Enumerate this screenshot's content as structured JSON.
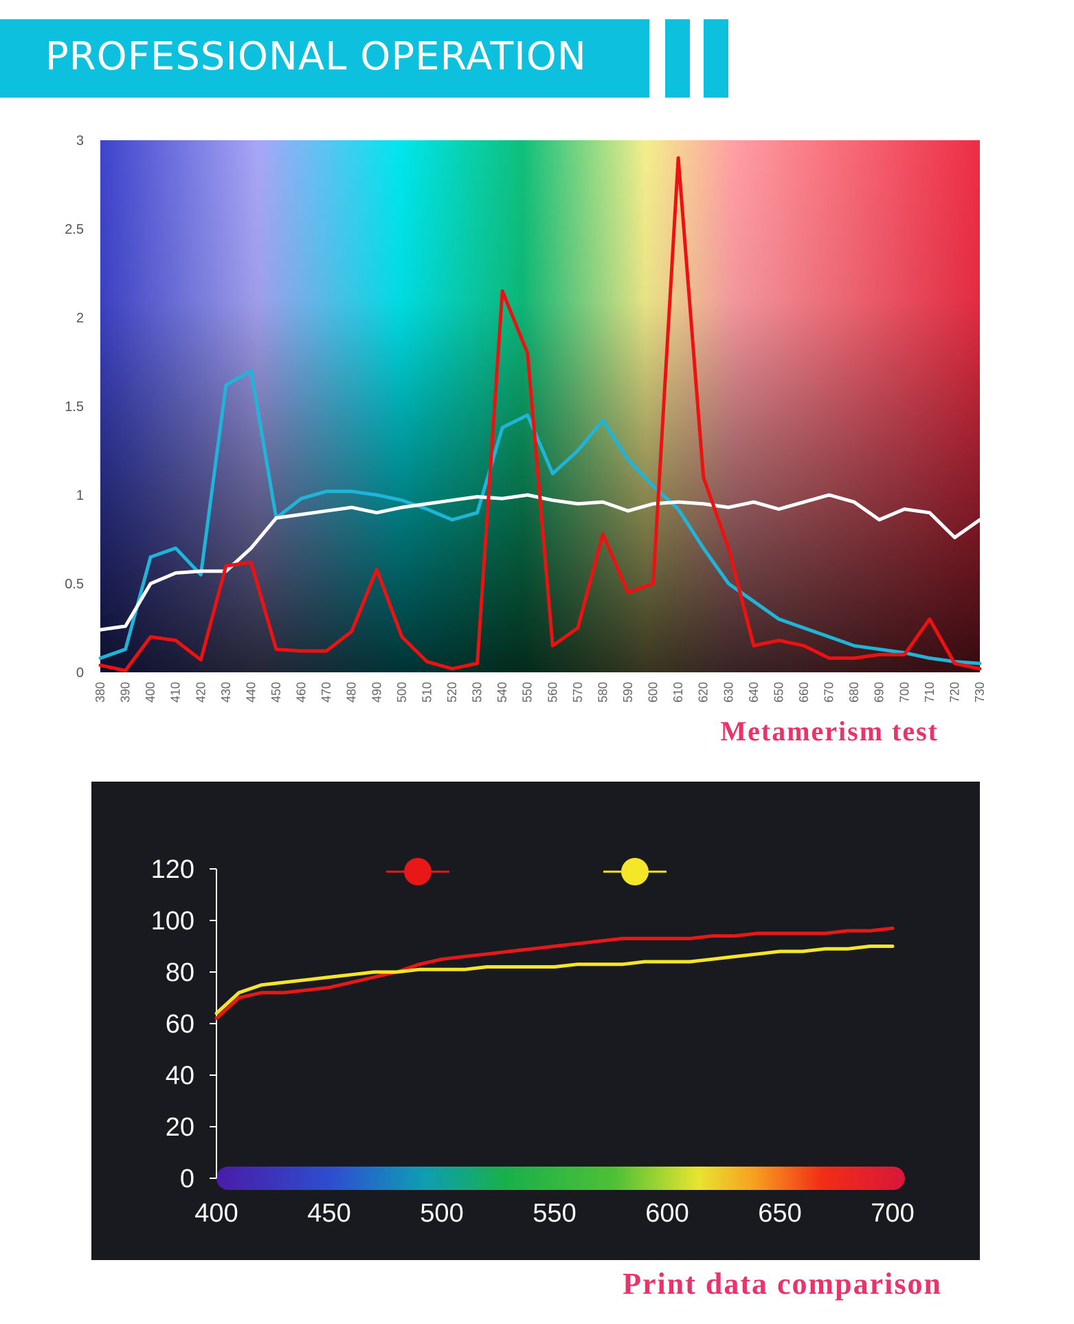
{
  "header": {
    "title": "PROFESSIONAL OPERATION"
  },
  "colors": {
    "accent": "#0cc0de",
    "caption": "#e8336b"
  },
  "chart_data": [
    {
      "type": "line",
      "caption": "Metamerism test",
      "x": [
        380,
        390,
        400,
        410,
        420,
        430,
        440,
        450,
        460,
        470,
        480,
        490,
        500,
        510,
        520,
        530,
        540,
        550,
        560,
        570,
        580,
        590,
        600,
        610,
        620,
        630,
        640,
        650,
        660,
        670,
        680,
        690,
        700,
        710,
        720,
        730
      ],
      "xlim": [
        380,
        730
      ],
      "ylim": [
        0,
        3
      ],
      "yticks": [
        "0",
        "0.5",
        "1",
        "1.5",
        "2",
        "2.5",
        "3"
      ],
      "xticks": [
        "380",
        "390",
        "400",
        "410",
        "420",
        "430",
        "440",
        "450",
        "460",
        "470",
        "480",
        "490",
        "500",
        "510",
        "520",
        "530",
        "540",
        "550",
        "560",
        "570",
        "580",
        "590",
        "600",
        "610",
        "620",
        "630",
        "640",
        "650",
        "660",
        "670",
        "680",
        "690",
        "700",
        "710",
        "720",
        "730"
      ],
      "background": "spectrum-gradient",
      "series": [
        {
          "color": "#1fb4d8",
          "values": [
            0.08,
            0.13,
            0.65,
            0.7,
            0.55,
            1.62,
            1.7,
            0.87,
            0.98,
            1.02,
            1.02,
            1.0,
            0.97,
            0.92,
            0.86,
            0.9,
            1.38,
            1.45,
            1.12,
            1.25,
            1.42,
            1.2,
            1.05,
            0.92,
            0.7,
            0.5,
            0.4,
            0.3,
            0.25,
            0.2,
            0.15,
            0.13,
            0.11,
            0.08,
            0.06,
            0.05
          ]
        },
        {
          "color": "#ffffff",
          "values": [
            0.24,
            0.26,
            0.5,
            0.56,
            0.57,
            0.57,
            0.7,
            0.87,
            0.89,
            0.91,
            0.93,
            0.9,
            0.93,
            0.95,
            0.97,
            0.99,
            0.98,
            1.0,
            0.97,
            0.95,
            0.96,
            0.91,
            0.95,
            0.96,
            0.95,
            0.93,
            0.96,
            0.92,
            0.96,
            1.0,
            0.96,
            0.86,
            0.92,
            0.9,
            0.76,
            0.86
          ]
        },
        {
          "color": "#ee1111",
          "values": [
            0.04,
            0.01,
            0.2,
            0.18,
            0.07,
            0.6,
            0.62,
            0.13,
            0.12,
            0.12,
            0.23,
            0.58,
            0.2,
            0.06,
            0.02,
            0.05,
            2.15,
            1.8,
            0.15,
            0.25,
            0.78,
            0.45,
            0.5,
            2.9,
            1.1,
            0.7,
            0.15,
            0.18,
            0.15,
            0.08,
            0.08,
            0.1,
            0.1,
            0.3,
            0.05,
            0.02
          ]
        }
      ]
    },
    {
      "type": "line",
      "caption": "Print data comparison",
      "x": [
        400,
        410,
        420,
        430,
        440,
        450,
        460,
        470,
        480,
        490,
        500,
        510,
        520,
        530,
        540,
        550,
        560,
        570,
        580,
        590,
        600,
        610,
        620,
        630,
        640,
        650,
        660,
        670,
        680,
        690,
        700
      ],
      "xlim": [
        400,
        700
      ],
      "ylim": [
        0,
        120
      ],
      "yticks": [
        "0",
        "20",
        "40",
        "60",
        "80",
        "100",
        "120"
      ],
      "xticks": [
        "400",
        "450",
        "500",
        "550",
        "600",
        "650",
        "700"
      ],
      "series": [
        {
          "color": "#e81818",
          "values": [
            62,
            70,
            72,
            72,
            73,
            74,
            76,
            78,
            80,
            83,
            85,
            86,
            87,
            88,
            89,
            90,
            91,
            92,
            93,
            93,
            93,
            93,
            94,
            94,
            95,
            95,
            95,
            95,
            96,
            96,
            97
          ]
        },
        {
          "color": "#f5e62a",
          "values": [
            64,
            72,
            75,
            76,
            77,
            78,
            79,
            80,
            80,
            81,
            81,
            81,
            82,
            82,
            82,
            82,
            83,
            83,
            83,
            84,
            84,
            84,
            85,
            86,
            87,
            88,
            88,
            89,
            89,
            90,
            90
          ]
        }
      ]
    }
  ]
}
